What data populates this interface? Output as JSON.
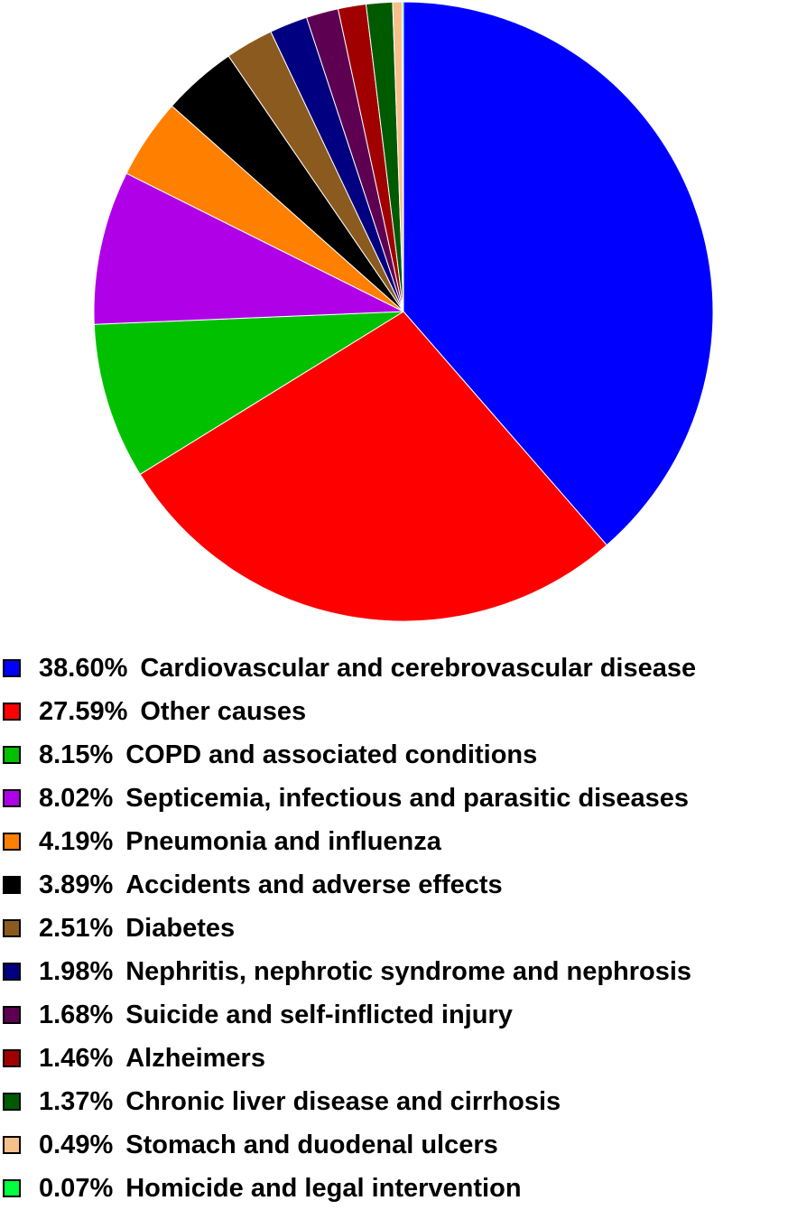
{
  "chart_data": {
    "type": "pie",
    "title": "",
    "slices": [
      {
        "label": "Cardiovascular and cerebrovascular disease",
        "percent_text": "38.60%",
        "value": 38.6,
        "color": "#0000ff"
      },
      {
        "label": "Other causes",
        "percent_text": "27.59%",
        "value": 27.59,
        "color": "#ff0000"
      },
      {
        "label": "COPD and associated conditions",
        "percent_text": "8.15%",
        "value": 8.15,
        "color": "#00c000"
      },
      {
        "label": "Septicemia, infectious and parasitic diseases",
        "percent_text": "8.02%",
        "value": 8.02,
        "color": "#b000e8"
      },
      {
        "label": "Pneumonia and influenza",
        "percent_text": "4.19%",
        "value": 4.19,
        "color": "#ff7f00"
      },
      {
        "label": "Accidents and adverse effects",
        "percent_text": "3.89%",
        "value": 3.89,
        "color": "#000000"
      },
      {
        "label": "Diabetes",
        "percent_text": "2.51%",
        "value": 2.51,
        "color": "#8b5a1e"
      },
      {
        "label": "Nephritis, nephrotic syndrome and nephrosis",
        "percent_text": "1.98%",
        "value": 1.98,
        "color": "#000080"
      },
      {
        "label": "Suicide and self-inflicted injury",
        "percent_text": "1.68%",
        "value": 1.68,
        "color": "#5e0052"
      },
      {
        "label": "Alzheimers",
        "percent_text": "1.46%",
        "value": 1.46,
        "color": "#a00000"
      },
      {
        "label": "Chronic liver disease and cirrhosis",
        "percent_text": "1.37%",
        "value": 1.37,
        "color": "#005a00"
      },
      {
        "label": "Stomach and duodenal ulcers",
        "percent_text": "0.49%",
        "value": 0.49,
        "color": "#f5c08a"
      },
      {
        "label": "Homicide and legal intervention",
        "percent_text": "0.07%",
        "value": 0.07,
        "color": "#00ff40"
      }
    ],
    "legend_position": "bottom",
    "start_angle": "12 o'clock",
    "direction": "clockwise"
  }
}
